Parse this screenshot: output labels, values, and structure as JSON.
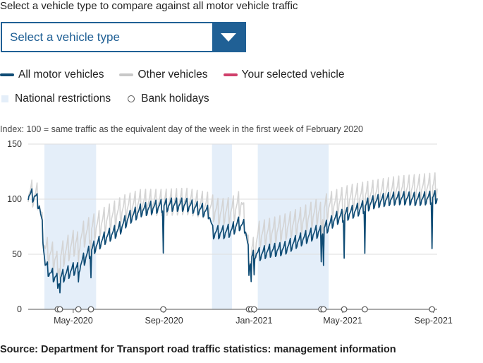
{
  "selector": {
    "prompt": "Select a vehicle type to compare against all motor vehicle traffic",
    "selected": "Select a vehicle type"
  },
  "legend": {
    "items": [
      {
        "label": "All motor vehicles",
        "color": "#0f4c75"
      },
      {
        "label": "Other vehicles",
        "color": "#c8c8c8"
      },
      {
        "label": "Your selected vehicle",
        "color": "#d0406b"
      }
    ],
    "restrictions": {
      "label": "National restrictions",
      "color": "#e4eef9"
    },
    "holidays": {
      "label": "Bank holidays"
    }
  },
  "index_note": "Index: 100 = same traffic as the equivalent day of the week in the first week of February 2020",
  "chart_data": {
    "type": "line",
    "x_range": [
      "2020-03-01",
      "2021-09-06"
    ],
    "ylim": [
      0,
      150
    ],
    "yticks": [
      0,
      50,
      100,
      150
    ],
    "xticks": [
      {
        "date": "2020-05-01",
        "label": "May-2020"
      },
      {
        "date": "2020-09-01",
        "label": "Sep-2020"
      },
      {
        "date": "2021-01-01",
        "label": "Jan-2021"
      },
      {
        "date": "2021-05-01",
        "label": "May-2021"
      },
      {
        "date": "2021-09-01",
        "label": "Sep-2021"
      }
    ],
    "restriction_periods": [
      {
        "start": "2020-03-23",
        "end": "2020-06-01"
      },
      {
        "start": "2020-11-05",
        "end": "2020-12-02"
      },
      {
        "start": "2021-01-06",
        "end": "2021-04-12"
      }
    ],
    "bank_holidays": [
      "2020-04-10",
      "2020-04-13",
      "2020-05-08",
      "2020-05-25",
      "2020-08-31",
      "2020-12-25",
      "2020-12-28",
      "2021-01-01",
      "2021-04-02",
      "2021-04-05",
      "2021-05-03",
      "2021-05-31",
      "2021-08-30"
    ],
    "series": [
      {
        "name": "All motor vehicles",
        "color": "#0f4c75",
        "weekly_amplitude": 6,
        "points": [
          [
            "2020-03-01",
            104
          ],
          [
            "2020-03-10",
            103
          ],
          [
            "2020-03-16",
            95
          ],
          [
            "2020-03-20",
            75
          ],
          [
            "2020-03-24",
            40
          ],
          [
            "2020-04-01",
            32
          ],
          [
            "2020-04-12",
            28
          ],
          [
            "2020-04-25",
            34
          ],
          [
            "2020-05-10",
            40
          ],
          [
            "2020-05-20",
            50
          ],
          [
            "2020-06-01",
            58
          ],
          [
            "2020-06-15",
            66
          ],
          [
            "2020-07-01",
            72
          ],
          [
            "2020-07-15",
            83
          ],
          [
            "2020-08-01",
            90
          ],
          [
            "2020-08-20",
            93
          ],
          [
            "2020-09-10",
            95
          ],
          [
            "2020-10-01",
            95
          ],
          [
            "2020-10-20",
            91
          ],
          [
            "2020-11-01",
            88
          ],
          [
            "2020-11-06",
            70
          ],
          [
            "2020-11-20",
            70
          ],
          [
            "2020-12-02",
            72
          ],
          [
            "2020-12-10",
            78
          ],
          [
            "2020-12-20",
            75
          ],
          [
            "2020-12-26",
            45
          ],
          [
            "2021-01-02",
            52
          ],
          [
            "2021-01-08",
            50
          ],
          [
            "2021-01-20",
            53
          ],
          [
            "2021-02-10",
            55
          ],
          [
            "2021-03-01",
            62
          ],
          [
            "2021-03-20",
            68
          ],
          [
            "2021-04-12",
            76
          ],
          [
            "2021-04-20",
            82
          ],
          [
            "2021-05-01",
            85
          ],
          [
            "2021-05-20",
            90
          ],
          [
            "2021-06-10",
            97
          ],
          [
            "2021-07-01",
            100
          ],
          [
            "2021-07-20",
            101
          ],
          [
            "2021-08-10",
            100
          ],
          [
            "2021-09-06",
            102
          ]
        ]
      },
      {
        "name": "Other vehicles",
        "color": "#d4d4d4",
        "weekly_amplitude": 12,
        "points": [
          [
            "2020-03-01",
            107
          ],
          [
            "2020-03-15",
            102
          ],
          [
            "2020-03-24",
            55
          ],
          [
            "2020-04-10",
            45
          ],
          [
            "2020-04-25",
            56
          ],
          [
            "2020-05-15",
            68
          ],
          [
            "2020-06-01",
            76
          ],
          [
            "2020-06-20",
            84
          ],
          [
            "2020-07-10",
            92
          ],
          [
            "2020-08-01",
            97
          ],
          [
            "2020-09-01",
            97
          ],
          [
            "2020-10-01",
            98
          ],
          [
            "2020-11-01",
            94
          ],
          [
            "2020-11-15",
            88
          ],
          [
            "2020-12-02",
            90
          ],
          [
            "2020-12-15",
            97
          ],
          [
            "2020-12-26",
            52
          ],
          [
            "2021-01-08",
            68
          ],
          [
            "2021-02-10",
            74
          ],
          [
            "2021-03-10",
            82
          ],
          [
            "2021-04-12",
            94
          ],
          [
            "2021-05-10",
            101
          ],
          [
            "2021-06-10",
            105
          ],
          [
            "2021-07-15",
            109
          ],
          [
            "2021-09-06",
            112
          ]
        ]
      }
    ]
  },
  "source": "Source: Department for Transport road traffic statistics: management information"
}
